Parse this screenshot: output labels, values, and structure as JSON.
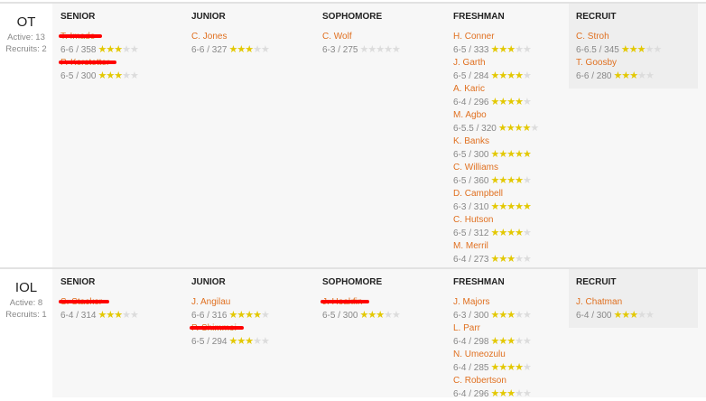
{
  "groups": [
    {
      "position": "OT",
      "active": "Active: 13",
      "recruits": "Recruits: 2",
      "columns": [
        {
          "header": "SENIOR",
          "players": [
            {
              "name": "T. Imade",
              "stats": "6-6 / 358",
              "stars": 3,
              "redacted": true
            },
            {
              "name": "P. Kerstetter",
              "stats": "6-5 / 300",
              "stars": 3,
              "redacted": true
            }
          ]
        },
        {
          "header": "JUNIOR",
          "players": [
            {
              "name": "C. Jones",
              "stats": "6-6 / 327",
              "stars": 3
            }
          ]
        },
        {
          "header": "SOPHOMORE",
          "players": [
            {
              "name": "C. Wolf",
              "stats": "6-3 / 275",
              "stars": 0
            }
          ]
        },
        {
          "header": "FRESHMAN",
          "players": [
            {
              "name": "H. Conner",
              "stats": "6-5 / 333",
              "stars": 3
            },
            {
              "name": "J. Garth",
              "stats": "6-5 / 284",
              "stars": 4
            },
            {
              "name": "A. Karic",
              "stats": "6-4 / 296",
              "stars": 4
            },
            {
              "name": "M. Agbo",
              "stats": "6-5.5 / 320",
              "stars": 4
            },
            {
              "name": "K. Banks",
              "stats": "6-5 / 300",
              "stars": 5
            },
            {
              "name": "C. Williams",
              "stats": "6-5 / 360",
              "stars": 4
            },
            {
              "name": "D. Campbell",
              "stats": "6-3 / 310",
              "stars": 5
            },
            {
              "name": "C. Hutson",
              "stats": "6-5 / 312",
              "stars": 4
            },
            {
              "name": "M. Merril",
              "stats": "6-4 / 273",
              "stars": 3
            }
          ]
        },
        {
          "header": "RECRUIT",
          "players": [
            {
              "name": "C. Stroh",
              "stats": "6-6.5 / 345",
              "stars": 3
            },
            {
              "name": "T. Goosby",
              "stats": "6-6 / 280",
              "stars": 3
            }
          ]
        }
      ]
    },
    {
      "position": "IOL",
      "active": "Active: 8",
      "recruits": "Recruits: 1",
      "columns": [
        {
          "header": "SENIOR",
          "players": [
            {
              "name": "S. Stacker",
              "stats": "6-4 / 314",
              "stars": 3,
              "redacted": true
            }
          ]
        },
        {
          "header": "JUNIOR",
          "players": [
            {
              "name": "J. Angilau",
              "stats": "6-6 / 316",
              "stars": 4
            },
            {
              "name": "P. Shimmoi",
              "stats": "6-5 / 294",
              "stars": 3,
              "redacted": true
            }
          ]
        },
        {
          "header": "SOPHOMORE",
          "players": [
            {
              "name": "J. Hoakfin",
              "stats": "6-5 / 300",
              "stars": 3,
              "redacted": true
            }
          ]
        },
        {
          "header": "FRESHMAN",
          "players": [
            {
              "name": "J. Majors",
              "stats": "6-3 / 300",
              "stars": 3
            },
            {
              "name": "L. Parr",
              "stats": "6-4 / 298",
              "stars": 3
            },
            {
              "name": "N. Umeozulu",
              "stats": "6-4 / 285",
              "stars": 4
            },
            {
              "name": "C. Robertson",
              "stats": "6-4 / 296",
              "stars": 3
            }
          ]
        },
        {
          "header": "RECRUIT",
          "players": [
            {
              "name": "J. Chatman",
              "stats": "6-4 / 300",
              "stars": 3
            }
          ]
        }
      ]
    }
  ],
  "colors": {
    "name": "#e07020",
    "star_on": "#e3c800",
    "star_off": "#dcdcdc",
    "redaction": "#ff0000"
  }
}
